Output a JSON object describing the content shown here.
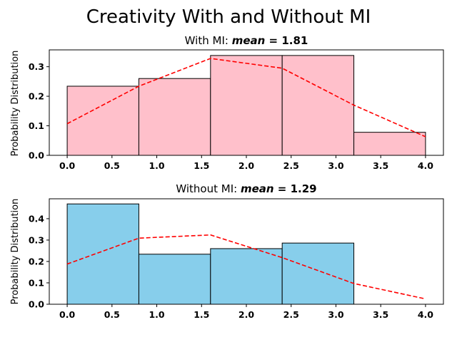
{
  "figure": {
    "suptitle": "Creativity With and Without MI"
  },
  "chart_data": [
    {
      "type": "bar",
      "title_prefix": "With MI: ",
      "title_var": "mean",
      "title_eq": " = ",
      "title_value": "1.81",
      "ylabel": "Probability Distribution",
      "xlabel": "",
      "xlim": [
        -0.2,
        4.2
      ],
      "ylim": [
        0,
        0.357
      ],
      "xticks": [
        "0.0",
        "0.5",
        "1.0",
        "1.5",
        "2.0",
        "2.5",
        "3.0",
        "3.5",
        "4.0"
      ],
      "yticks": [
        "0.0",
        "0.1",
        "0.2",
        "0.3"
      ],
      "bin_edges": [
        0.0,
        0.8,
        1.6,
        2.4,
        3.2,
        4.0
      ],
      "values": [
        0.234,
        0.26,
        0.338,
        0.338,
        0.078
      ],
      "bar_color": "#ffc0cb",
      "kde": {
        "color": "#ff0000",
        "x": [
          0.0,
          0.8,
          1.6,
          2.4,
          3.2,
          4.0
        ],
        "y": [
          0.107,
          0.234,
          0.328,
          0.295,
          0.17,
          0.063
        ]
      },
      "grid": false
    },
    {
      "type": "bar",
      "title_prefix": "Without MI: ",
      "title_var": "mean",
      "title_eq": " = ",
      "title_value": "1.29",
      "ylabel": "Probability Distribution",
      "xlabel": "",
      "xlim": [
        -0.2,
        4.2
      ],
      "ylim": [
        0,
        0.493
      ],
      "xticks": [
        "0.0",
        "0.5",
        "1.0",
        "1.5",
        "2.0",
        "2.5",
        "3.0",
        "3.5",
        "4.0"
      ],
      "yticks": [
        "0.0",
        "0.1",
        "0.2",
        "0.3",
        "0.4"
      ],
      "bin_edges": [
        0.0,
        0.8,
        1.6,
        2.4,
        3.2
      ],
      "values": [
        0.469,
        0.234,
        0.26,
        0.286
      ],
      "bar_color": "#87ceeb",
      "kde": {
        "color": "#ff0000",
        "x": [
          0.0,
          0.8,
          1.6,
          2.4,
          3.2,
          4.0
        ],
        "y": [
          0.188,
          0.309,
          0.324,
          0.218,
          0.097,
          0.025
        ]
      },
      "grid": false
    }
  ]
}
